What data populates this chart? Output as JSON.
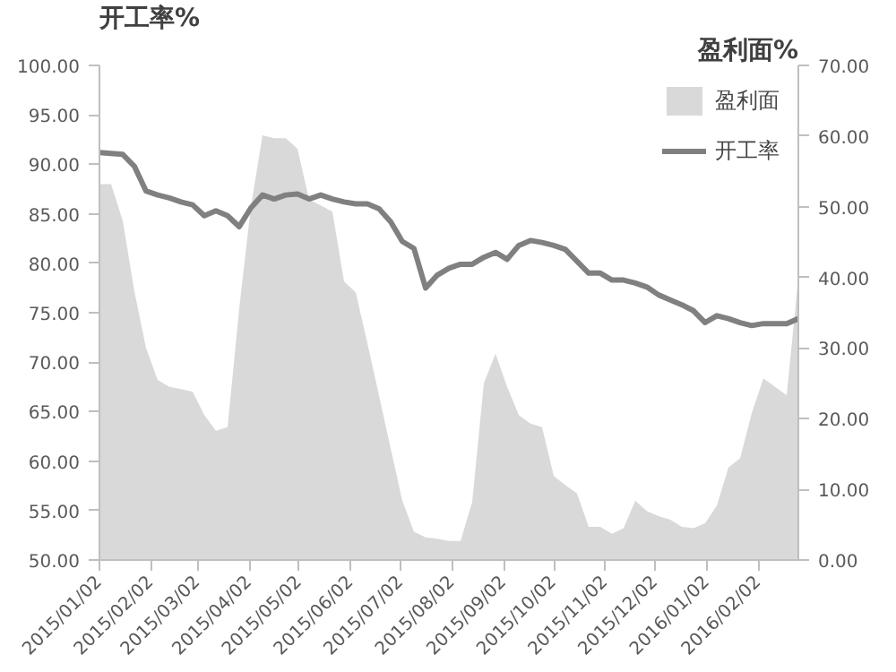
{
  "chart_data": {
    "type": "line",
    "ylabel": "开工率%",
    "y2label": "盈利面%",
    "x": [
      "2015-01-02",
      "2015-01-09",
      "2015-01-16",
      "2015-01-23",
      "2015-01-30",
      "2015-02-06",
      "2015-02-13",
      "2015-02-20",
      "2015-02-27",
      "2015-03-06",
      "2015-03-13",
      "2015-03-20",
      "2015-03-27",
      "2015-04-03",
      "2015-04-10",
      "2015-04-17",
      "2015-04-24",
      "2015-05-01",
      "2015-05-08",
      "2015-05-15",
      "2015-05-22",
      "2015-05-29",
      "2015-06-05",
      "2015-06-12",
      "2015-06-19",
      "2015-06-26",
      "2015-07-03",
      "2015-07-10",
      "2015-07-17",
      "2015-07-24",
      "2015-07-31",
      "2015-08-07",
      "2015-08-14",
      "2015-08-21",
      "2015-08-28",
      "2015-09-04",
      "2015-09-11",
      "2015-09-18",
      "2015-09-25",
      "2015-10-02",
      "2015-10-09",
      "2015-10-16",
      "2015-10-23",
      "2015-10-30",
      "2015-11-06",
      "2015-11-13",
      "2015-11-20",
      "2015-11-27",
      "2015-12-04",
      "2015-12-11",
      "2015-12-18",
      "2015-12-25",
      "2016-01-01",
      "2016-01-08",
      "2016-01-15",
      "2016-01-22",
      "2016-01-29",
      "2016-02-05",
      "2016-02-12",
      "2016-02-19",
      "2016-02-26"
    ],
    "series": [
      {
        "name": "盈利面",
        "type": "area",
        "axis": "y2",
        "color": "#d9d9d9",
        "values": [
          53.2,
          53.2,
          48,
          38,
          30.0,
          25.5,
          24.5,
          24.2,
          23.8,
          20.5,
          18.3,
          18.8,
          35.6,
          50,
          60.1,
          59.7,
          59.7,
          58.2,
          51.0,
          50.2,
          49.3,
          39.4,
          37.9,
          30.7,
          23.3,
          15.8,
          8.4,
          4.0,
          3.2,
          3.0,
          2.7,
          2.7,
          8.2,
          25.0,
          29.2,
          24.5,
          20.5,
          19.3,
          18.8,
          11.9,
          10.6,
          9.4,
          4.7,
          4.7,
          3.7,
          4.5,
          8.4,
          6.9,
          6.2,
          5.7,
          4.7,
          4.5,
          5.2,
          7.7,
          13.1,
          14.4,
          20.8,
          25.7,
          24.5,
          23.3,
          39.9
        ]
      },
      {
        "name": "开工率",
        "color": "#808080",
        "values": [
          91.2,
          91.1,
          91.0,
          89.8,
          87.3,
          86.9,
          86.6,
          86.2,
          85.9,
          84.8,
          85.3,
          84.8,
          83.7,
          85.6,
          86.9,
          86.5,
          86.9,
          87.0,
          86.5,
          86.9,
          86.5,
          86.2,
          86.0,
          86.0,
          85.5,
          84.2,
          82.2,
          81.5,
          77.5,
          78.8,
          79.5,
          79.9,
          79.9,
          80.6,
          81.1,
          80.4,
          81.8,
          82.3,
          82.1,
          81.8,
          81.4,
          80.2,
          79.0,
          79.0,
          78.3,
          78.3,
          78.0,
          77.6,
          76.8,
          76.3,
          75.8,
          75.2,
          74.0,
          74.7,
          74.4,
          74.0,
          73.7,
          73.9,
          73.9,
          73.9,
          74.4
        ]
      }
    ],
    "xlim": [
      "2015-01-02",
      "2016-02-26"
    ],
    "xticks": [
      {
        "value": "2015-01-02",
        "label": "2015/01/02"
      },
      {
        "value": "2015-02-02",
        "label": "2015/02/02"
      },
      {
        "value": "2015-03-02",
        "label": "2015/03/02"
      },
      {
        "value": "2015-04-02",
        "label": "2015/04/02"
      },
      {
        "value": "2015-05-02",
        "label": "2015/05/02"
      },
      {
        "value": "2015-06-02",
        "label": "2015/06/02"
      },
      {
        "value": "2015-07-02",
        "label": "2015/07/02"
      },
      {
        "value": "2015-08-02",
        "label": "2015/08/02"
      },
      {
        "value": "2015-09-02",
        "label": "2015/09/02"
      },
      {
        "value": "2015-10-02",
        "label": "2015/10/02"
      },
      {
        "value": "2015-11-02",
        "label": "2015/11/02"
      },
      {
        "value": "2015-12-02",
        "label": "2015/12/02"
      },
      {
        "value": "2016-01-02",
        "label": "2016/01/02"
      },
      {
        "value": "2016-02-02",
        "label": "2016/02/02"
      }
    ],
    "ylim": [
      50,
      100
    ],
    "yticks": [
      {
        "value": 50,
        "label": "50.00"
      },
      {
        "value": 55,
        "label": "55.00"
      },
      {
        "value": 60,
        "label": "60.00"
      },
      {
        "value": 65,
        "label": "65.00"
      },
      {
        "value": 70,
        "label": "70.00"
      },
      {
        "value": 75,
        "label": "75.00"
      },
      {
        "value": 80,
        "label": "80.00"
      },
      {
        "value": 85,
        "label": "85.00"
      },
      {
        "value": 90,
        "label": "90.00"
      },
      {
        "value": 95,
        "label": "95.00"
      },
      {
        "value": 100,
        "label": "100.00"
      }
    ],
    "y2lim": [
      0,
      70
    ],
    "y2ticks": [
      {
        "value": 0,
        "label": "0.00"
      },
      {
        "value": 10,
        "label": "10.00"
      },
      {
        "value": 20,
        "label": "20.00"
      },
      {
        "value": 30,
        "label": "30.00"
      },
      {
        "value": 40,
        "label": "40.00"
      },
      {
        "value": 50,
        "label": "50.00"
      },
      {
        "value": 60,
        "label": "60.00"
      },
      {
        "value": 70,
        "label": "70.00"
      }
    ],
    "grid": false,
    "legend": "top right"
  }
}
